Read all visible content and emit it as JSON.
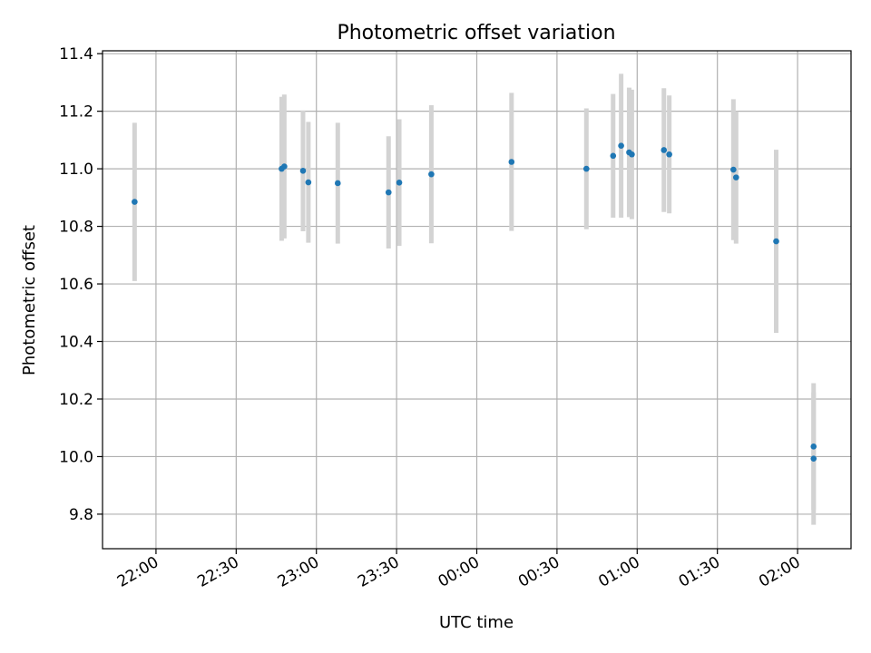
{
  "chart_data": {
    "type": "scatter",
    "title": "Photometric offset variation",
    "xlabel": "UTC time",
    "ylabel": "Photometric offset",
    "x_axis": {
      "type": "time",
      "range": [
        "21:40",
        "02:20"
      ],
      "ticks": [
        "22:00",
        "22:30",
        "23:00",
        "23:30",
        "00:00",
        "00:30",
        "01:00",
        "01:30",
        "02:00"
      ]
    },
    "y_axis": {
      "range": [
        9.68,
        11.41
      ],
      "ticks": [
        "9.8",
        "10.0",
        "10.2",
        "10.4",
        "10.6",
        "10.8",
        "11.0",
        "11.2",
        "11.4"
      ]
    },
    "grid": true,
    "colors": {
      "point": "#1f77b4",
      "errorbar": "#d3d3d3",
      "grid": "#b0b0b0"
    },
    "series": [
      {
        "points": [
          {
            "t": "21:52",
            "y": 10.885,
            "err": 0.275
          },
          {
            "t": "22:47",
            "y": 11.0,
            "err": 0.25
          },
          {
            "t": "22:48",
            "y": 11.008,
            "err": 0.25
          },
          {
            "t": "22:55",
            "y": 10.993,
            "err": 0.21
          },
          {
            "t": "22:57",
            "y": 10.953,
            "err": 0.21
          },
          {
            "t": "23:08",
            "y": 10.95,
            "err": 0.21
          },
          {
            "t": "23:27",
            "y": 10.918,
            "err": 0.195
          },
          {
            "t": "23:31",
            "y": 10.952,
            "err": 0.22
          },
          {
            "t": "23:43",
            "y": 10.981,
            "err": 0.24
          },
          {
            "t": "00:13",
            "y": 11.024,
            "err": 0.24
          },
          {
            "t": "00:41",
            "y": 11.0,
            "err": 0.21
          },
          {
            "t": "00:51",
            "y": 11.045,
            "err": 0.215
          },
          {
            "t": "00:54",
            "y": 11.08,
            "err": 0.25
          },
          {
            "t": "00:57",
            "y": 11.057,
            "err": 0.225
          },
          {
            "t": "00:58",
            "y": 11.05,
            "err": 0.225
          },
          {
            "t": "01:10",
            "y": 11.065,
            "err": 0.215
          },
          {
            "t": "01:12",
            "y": 11.05,
            "err": 0.205
          },
          {
            "t": "01:36",
            "y": 10.997,
            "err": 0.245
          },
          {
            "t": "01:37",
            "y": 10.97,
            "err": 0.23
          },
          {
            "t": "01:52",
            "y": 10.748,
            "err": 0.318
          },
          {
            "t": "02:06",
            "y": 10.035,
            "err": 0.22
          },
          {
            "t": "02:06",
            "y": 9.993,
            "err": 0.23
          }
        ]
      }
    ]
  }
}
